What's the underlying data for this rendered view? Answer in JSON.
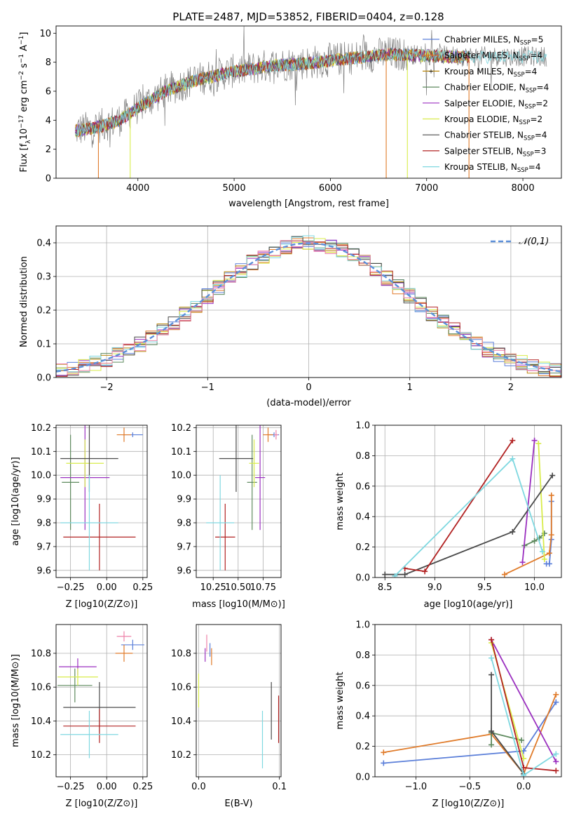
{
  "figure": {
    "title": "PLATE=2487, MJD=53852, FIBERID=0404, z=0.128"
  },
  "chart_data": [
    {
      "id": "spectrum",
      "type": "line",
      "xlabel": "wavelength [Angstrom, rest frame]",
      "ylabel": "Flux [f_λ10^-17 erg cm^-2 s^-1 A^-1]",
      "xlim": [
        3150,
        8400
      ],
      "ylim": [
        0,
        10.5
      ],
      "xticks": [
        4000,
        5000,
        6000,
        7000,
        8000
      ],
      "yticks": [
        0,
        2,
        4,
        6,
        8,
        10
      ],
      "grid": false,
      "legend_position": "top-right",
      "continuum_x": [
        3350,
        3600,
        3800,
        4000,
        4300,
        4600,
        5000,
        5400,
        5800,
        6200,
        6600,
        7000,
        7400
      ],
      "continuum_y": [
        3.3,
        3.6,
        4.0,
        4.9,
        6.1,
        6.8,
        7.4,
        7.8,
        8.0,
        8.3,
        8.6,
        8.5,
        8.4
      ],
      "series": [
        {
          "name": "Chabrier MILES, N_SSP=5",
          "color": "#5b7fd9"
        },
        {
          "name": "Salpeter MILES, N_SSP=4",
          "color": "#e07b2a"
        },
        {
          "name": "Kroupa MILES, N_SSP=4",
          "color": "#b8860b"
        },
        {
          "name": "Chabrier ELODIE, N_SSP=4",
          "color": "#5e8a5e"
        },
        {
          "name": "Salpeter ELODIE, N_SSP=2",
          "color": "#9b30c0"
        },
        {
          "name": "Kroupa ELODIE, N_SSP=2",
          "color": "#d8ec4a"
        },
        {
          "name": "Chabrier STELIB, N_SSP=4",
          "color": "#4a4a4a"
        },
        {
          "name": "Salpeter STELIB, N_SSP=3",
          "color": "#b22222"
        },
        {
          "name": "Kroupa STELIB, N_SSP=4",
          "color": "#7fd8e0"
        }
      ]
    },
    {
      "id": "residuals",
      "type": "line",
      "xlabel": "(data-model)/error",
      "ylabel": "Normed distribution",
      "xlim": [
        -2.5,
        2.5
      ],
      "ylim": [
        0,
        0.45
      ],
      "xticks": [
        -2,
        -1,
        0,
        1,
        2
      ],
      "yticks": [
        0.0,
        0.1,
        0.2,
        0.3,
        0.4
      ],
      "grid": true,
      "legend": "𝒩(0,1)",
      "legend_position": "top-right",
      "normal_curve_color": "#5b8fd9"
    },
    {
      "id": "age-vs-Z",
      "type": "scatter",
      "xlabel": "Z [log10(Z/Z⊙)]",
      "ylabel": "age [log10(age/yr)]",
      "xlim": [
        -0.35,
        0.28
      ],
      "ylim": [
        9.57,
        10.21
      ],
      "xticks": [
        -0.25,
        0.0,
        0.25
      ],
      "yticks": [
        9.6,
        9.7,
        9.8,
        9.9,
        10.0,
        10.1,
        10.2
      ],
      "grid": true,
      "points": [
        {
          "x": 0.18,
          "xerr": 0.07,
          "y": 10.17,
          "yerr": 0.01,
          "color": "#5b7fd9"
        },
        {
          "x": 0.12,
          "xerr": 0.05,
          "y": 10.17,
          "yerr": 0.03,
          "color": "#e07b2a"
        },
        {
          "x": -0.25,
          "xerr": 0.06,
          "y": 9.97,
          "yerr": 0.2,
          "color": "#5e8a5e"
        },
        {
          "x": -0.15,
          "xerr": 0.17,
          "y": 9.99,
          "yerr": 0.22,
          "color": "#9b30c0"
        },
        {
          "x": -0.15,
          "xerr": 0.13,
          "y": 10.05,
          "yerr": 0.1,
          "color": "#d8ec4a"
        },
        {
          "x": -0.12,
          "xerr": 0.2,
          "y": 10.07,
          "yerr": 0.14,
          "color": "#4a4a4a"
        },
        {
          "x": -0.05,
          "xerr": 0.25,
          "y": 9.74,
          "yerr": 0.14,
          "color": "#b22222"
        },
        {
          "x": -0.12,
          "xerr": 0.2,
          "y": 9.8,
          "yerr": 0.2,
          "color": "#7fd8e0"
        }
      ]
    },
    {
      "id": "age-vs-mass",
      "type": "scatter",
      "xlabel": "mass [log10(M/M⊙)]",
      "xlim": [
        10.08,
        10.93
      ],
      "ylim": [
        9.57,
        10.21
      ],
      "xticks": [
        10.25,
        10.5,
        10.75
      ],
      "yticks": [
        9.6,
        9.7,
        9.8,
        9.9,
        10.0,
        10.1,
        10.2
      ],
      "grid": true,
      "points": [
        {
          "x": 10.86,
          "xerr": 0.05,
          "y": 10.17,
          "yerr": 0.01,
          "color": "#5b7fd9"
        },
        {
          "x": 10.8,
          "xerr": 0.05,
          "y": 10.17,
          "yerr": 0.03,
          "color": "#e07b2a"
        },
        {
          "x": 10.88,
          "xerr": 0.02,
          "y": 10.17,
          "yerr": 0.02,
          "color": "#ee82a8"
        },
        {
          "x": 10.64,
          "xerr": 0.05,
          "y": 9.97,
          "yerr": 0.2,
          "color": "#5e8a5e"
        },
        {
          "x": 10.72,
          "xerr": 0.05,
          "y": 9.99,
          "yerr": 0.22,
          "color": "#9b30c0"
        },
        {
          "x": 10.66,
          "xerr": 0.05,
          "y": 10.05,
          "yerr": 0.1,
          "color": "#d8ec4a"
        },
        {
          "x": 10.48,
          "xerr": 0.17,
          "y": 10.07,
          "yerr": 0.14,
          "color": "#4a4a4a"
        },
        {
          "x": 10.37,
          "xerr": 0.1,
          "y": 9.74,
          "yerr": 0.14,
          "color": "#b22222"
        },
        {
          "x": 10.32,
          "xerr": 0.14,
          "y": 9.8,
          "yerr": 0.2,
          "color": "#7fd8e0"
        }
      ]
    },
    {
      "id": "weight-vs-age",
      "type": "line",
      "xlabel": "age [log10(age/yr)]",
      "ylabel": "mass weight",
      "xlim": [
        8.4,
        10.27
      ],
      "ylim": [
        0,
        1
      ],
      "xticks": [
        8.5,
        9.0,
        9.5,
        10.0
      ],
      "yticks": [
        0.0,
        0.2,
        0.4,
        0.6,
        0.8,
        1.0
      ],
      "grid": true,
      "series": [
        {
          "color": "#5b7fd9",
          "x": [
            10.12,
            10.15,
            10.17,
            10.17
          ],
          "y": [
            0.09,
            0.09,
            0.25,
            0.5
          ]
        },
        {
          "color": "#e07b2a",
          "x": [
            9.7,
            10.15,
            10.17,
            10.17
          ],
          "y": [
            0.02,
            0.16,
            0.28,
            0.54
          ]
        },
        {
          "color": "#5e8a5e",
          "x": [
            9.9,
            10.0,
            10.05,
            10.1
          ],
          "y": [
            0.21,
            0.24,
            0.26,
            0.29
          ]
        },
        {
          "color": "#9b30c0",
          "x": [
            9.88,
            10.0
          ],
          "y": [
            0.1,
            0.9
          ]
        },
        {
          "color": "#d8ec4a",
          "x": [
            10.04,
            10.1
          ],
          "y": [
            0.88,
            0.12
          ]
        },
        {
          "color": "#4a4a4a",
          "x": [
            8.5,
            8.7,
            9.78,
            10.18
          ],
          "y": [
            0.02,
            0.02,
            0.3,
            0.67
          ]
        },
        {
          "color": "#b22222",
          "x": [
            8.7,
            8.9,
            9.78
          ],
          "y": [
            0.06,
            0.04,
            0.9
          ]
        },
        {
          "color": "#7fd8e0",
          "x": [
            8.6,
            9.78,
            10.08
          ],
          "y": [
            0.01,
            0.78,
            0.17
          ]
        }
      ]
    },
    {
      "id": "mass-vs-Z",
      "type": "scatter",
      "xlabel": "Z [log10(Z/Z⊙)]",
      "ylabel": "mass [log10(M/M⊙)]",
      "xlim": [
        -0.35,
        0.28
      ],
      "ylim": [
        10.07,
        10.97
      ],
      "xticks": [
        -0.25,
        0.0,
        0.25
      ],
      "yticks": [
        10.2,
        10.4,
        10.6,
        10.8
      ],
      "grid": true,
      "points": [
        {
          "x": 0.18,
          "xerr": 0.08,
          "y": 10.85,
          "yerr": 0.03,
          "color": "#5b7fd9"
        },
        {
          "x": 0.12,
          "xerr": 0.06,
          "y": 10.8,
          "yerr": 0.05,
          "color": "#e07b2a"
        },
        {
          "x": 0.12,
          "xerr": 0.05,
          "y": 10.9,
          "yerr": 0.03,
          "color": "#ee82a8"
        },
        {
          "x": -0.22,
          "xerr": 0.12,
          "y": 10.61,
          "yerr": 0.1,
          "color": "#5e8a5e"
        },
        {
          "x": -0.2,
          "xerr": 0.13,
          "y": 10.72,
          "yerr": 0.05,
          "color": "#9b30c0"
        },
        {
          "x": -0.2,
          "xerr": 0.14,
          "y": 10.66,
          "yerr": 0.05,
          "color": "#d8ec4a"
        },
        {
          "x": -0.05,
          "xerr": 0.25,
          "y": 10.48,
          "yerr": 0.15,
          "color": "#4a4a4a"
        },
        {
          "x": -0.05,
          "xerr": 0.25,
          "y": 10.37,
          "yerr": 0.1,
          "color": "#b22222"
        },
        {
          "x": -0.12,
          "xerr": 0.2,
          "y": 10.32,
          "yerr": 0.14,
          "color": "#7fd8e0"
        }
      ]
    },
    {
      "id": "mass-vs-ebv",
      "type": "scatter",
      "xlabel": "E(B-V)",
      "xlim": [
        -0.003,
        0.102
      ],
      "ylim": [
        10.07,
        10.97
      ],
      "xticks": [
        0.0,
        0.1
      ],
      "yticks": [
        10.2,
        10.4,
        10.6,
        10.8
      ],
      "grid": true,
      "points": [
        {
          "x": 0.0,
          "y": 10.58,
          "yerr": 0.1,
          "color": "#d8ec4a"
        },
        {
          "x": 0.008,
          "y": 10.79,
          "yerr": 0.04,
          "color": "#9b30c0"
        },
        {
          "x": 0.01,
          "y": 10.86,
          "yerr": 0.05,
          "color": "#ee82a8"
        },
        {
          "x": 0.014,
          "y": 10.82,
          "yerr": 0.04,
          "color": "#5b7fd9"
        },
        {
          "x": 0.016,
          "y": 10.78,
          "yerr": 0.05,
          "color": "#e07b2a"
        },
        {
          "x": 0.079,
          "y": 10.29,
          "yerr": 0.17,
          "color": "#7fd8e0"
        },
        {
          "x": 0.09,
          "y": 10.46,
          "yerr": 0.17,
          "color": "#4a4a4a"
        },
        {
          "x": 0.099,
          "y": 10.41,
          "yerr": 0.14,
          "color": "#b22222"
        }
      ]
    },
    {
      "id": "weight-vs-Z",
      "type": "line",
      "xlabel": "Z [log10(Z/Z⊙)]",
      "ylabel": "mass weight",
      "xlim": [
        -1.38,
        0.35
      ],
      "ylim": [
        0,
        1
      ],
      "xticks": [
        -1.0,
        -0.5,
        0.0
      ],
      "yticks": [
        0.0,
        0.2,
        0.4,
        0.6,
        0.8,
        1.0
      ],
      "grid": true,
      "series": [
        {
          "color": "#5b7fd9",
          "x": [
            -1.3,
            0.0,
            0.3
          ],
          "y": [
            0.09,
            0.17,
            0.49
          ]
        },
        {
          "color": "#e07b2a",
          "x": [
            -1.3,
            -0.3,
            0.0,
            0.3
          ],
          "y": [
            0.16,
            0.28,
            0.02,
            0.54
          ]
        },
        {
          "color": "#5e8a5e",
          "x": [
            -0.3,
            -0.3,
            -0.02
          ],
          "y": [
            0.21,
            0.29,
            0.24
          ]
        },
        {
          "color": "#9b30c0",
          "x": [
            -0.3,
            0.3
          ],
          "y": [
            0.9,
            0.1
          ]
        },
        {
          "color": "#d8ec4a",
          "x": [
            -0.3,
            0.0
          ],
          "y": [
            0.88,
            0.12
          ]
        },
        {
          "color": "#4a4a4a",
          "x": [
            -0.3,
            -0.3,
            0.0
          ],
          "y": [
            0.67,
            0.3,
            0.02
          ]
        },
        {
          "color": "#b22222",
          "x": [
            -0.3,
            0.0,
            0.3
          ],
          "y": [
            0.9,
            0.06,
            0.04
          ]
        },
        {
          "color": "#7fd8e0",
          "x": [
            -0.3,
            0.0,
            0.3
          ],
          "y": [
            0.78,
            0.01,
            0.15
          ]
        }
      ]
    }
  ]
}
